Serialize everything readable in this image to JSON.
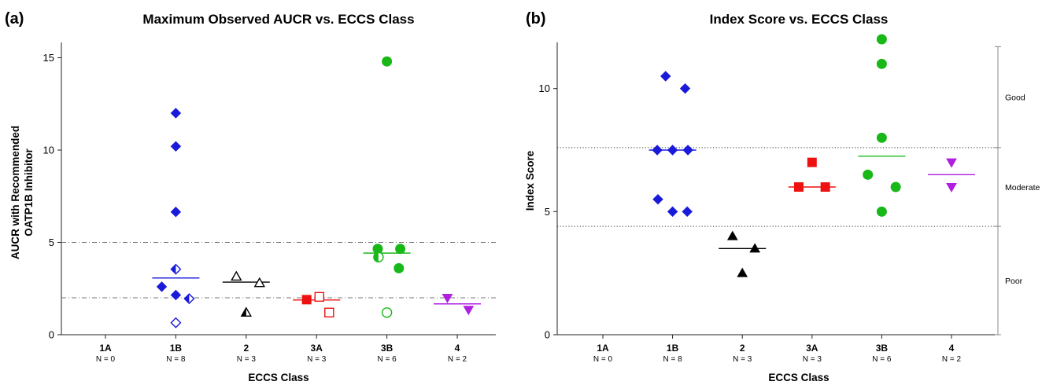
{
  "chart_data": [
    {
      "type": "scatter",
      "panel_label": "(a)",
      "title": "Maximum Observed AUCR vs.  ECCS Class",
      "xlabel": "ECCS Class",
      "ylabel_line1": "AUCR with Recommended",
      "ylabel_line2": "OATP1B Inhibitor",
      "ylim": [
        0,
        16
      ],
      "yticks": [
        0,
        5,
        10,
        15
      ],
      "ytick_labels": [
        "0",
        "5",
        "10",
        "15"
      ],
      "categories": [
        "1A",
        "1B",
        "2",
        "3A",
        "3B",
        "4"
      ],
      "n_labels": [
        "N = 0",
        "N = 8",
        "N = 3",
        "N = 3",
        "N = 6",
        "N = 2"
      ],
      "reference_lines": [
        5,
        2
      ],
      "series": [
        {
          "category": "1B",
          "color": "#1a1adb",
          "marker": "diamond",
          "points": [
            {
              "dx": 0,
              "y": 12.0,
              "fill": "full"
            },
            {
              "dx": 0,
              "y": 10.2,
              "fill": "full"
            },
            {
              "dx": 0,
              "y": 6.65,
              "fill": "full"
            },
            {
              "dx": 0,
              "y": 3.55,
              "fill": "half"
            },
            {
              "dx": -0.2,
              "y": 2.6,
              "fill": "full"
            },
            {
              "dx": 0,
              "y": 2.15,
              "fill": "full"
            },
            {
              "dx": 0.19,
              "y": 1.95,
              "fill": "half"
            },
            {
              "dx": 0,
              "y": 0.65,
              "fill": "open"
            }
          ],
          "median": 3.07
        },
        {
          "category": "2",
          "color": "#000000",
          "marker": "triangle-up",
          "points": [
            {
              "dx": -0.14,
              "y": 3.15,
              "fill": "open"
            },
            {
              "dx": 0.19,
              "y": 2.8,
              "fill": "open"
            },
            {
              "dx": 0,
              "y": 1.2,
              "fill": "half"
            }
          ],
          "median": 2.85
        },
        {
          "category": "3A",
          "color": "#ee1111",
          "marker": "square",
          "points": [
            {
              "dx": -0.14,
              "y": 1.9,
              "fill": "full"
            },
            {
              "dx": 0.04,
              "y": 2.05,
              "fill": "open"
            },
            {
              "dx": 0.18,
              "y": 1.2,
              "fill": "open"
            }
          ],
          "median": 1.88
        },
        {
          "category": "3B",
          "color": "#18b818",
          "marker": "circle",
          "points": [
            {
              "dx": 0,
              "y": 14.8,
              "fill": "full"
            },
            {
              "dx": -0.13,
              "y": 4.65,
              "fill": "full"
            },
            {
              "dx": 0.19,
              "y": 4.65,
              "fill": "full"
            },
            {
              "dx": -0.12,
              "y": 4.2,
              "fill": "half"
            },
            {
              "dx": 0.17,
              "y": 3.6,
              "fill": "full"
            },
            {
              "dx": 0,
              "y": 1.2,
              "fill": "open"
            }
          ],
          "median": 4.42
        },
        {
          "category": "4",
          "color": "#b01ee0",
          "marker": "triangle-down",
          "points": [
            {
              "dx": -0.14,
              "y": 2.0,
              "fill": "full"
            },
            {
              "dx": 0.16,
              "y": 1.35,
              "fill": "full"
            }
          ],
          "median": 1.67
        }
      ]
    },
    {
      "type": "scatter",
      "panel_label": "(b)",
      "title": "Index Score vs. ECCS Class",
      "xlabel": "ECCS Class",
      "ylabel": "Index  Score",
      "ylim": [
        0,
        12
      ],
      "yticks": [
        0,
        5,
        10
      ],
      "ytick_labels": [
        "0",
        "5",
        "10"
      ],
      "categories": [
        "1A",
        "1B",
        "2",
        "3A",
        "3B",
        "4"
      ],
      "n_labels": [
        "N = 0",
        "N = 8",
        "N = 3",
        "N = 3",
        "N = 6",
        "N = 2"
      ],
      "reference_lines": [
        7.6,
        4.4
      ],
      "bands": [
        {
          "label": "Good",
          "y_range": [
            7.6,
            11.7
          ]
        },
        {
          "label": "Moderate",
          "y_range": [
            4.4,
            7.6
          ]
        },
        {
          "label": "Poor",
          "y_range": [
            0,
            4.4
          ]
        }
      ],
      "series": [
        {
          "category": "1B",
          "color": "#1a1adb",
          "marker": "diamond",
          "points": [
            {
              "dx": -0.1,
              "y": 10.5,
              "fill": "full"
            },
            {
              "dx": 0.18,
              "y": 10.0,
              "fill": "full"
            },
            {
              "dx": -0.22,
              "y": 7.5,
              "fill": "full"
            },
            {
              "dx": 0,
              "y": 7.5,
              "fill": "full"
            },
            {
              "dx": 0.22,
              "y": 7.5,
              "fill": "full"
            },
            {
              "dx": -0.21,
              "y": 5.5,
              "fill": "full"
            },
            {
              "dx": 0,
              "y": 5.0,
              "fill": "full"
            },
            {
              "dx": 0.21,
              "y": 5.0,
              "fill": "full"
            }
          ],
          "median": 7.5
        },
        {
          "category": "2",
          "color": "#000000",
          "marker": "triangle-up",
          "points": [
            {
              "dx": -0.14,
              "y": 4.0,
              "fill": "full"
            },
            {
              "dx": 0.18,
              "y": 3.5,
              "fill": "full"
            },
            {
              "dx": 0,
              "y": 2.5,
              "fill": "full"
            }
          ],
          "median": 3.5
        },
        {
          "category": "3A",
          "color": "#ee1111",
          "marker": "square",
          "points": [
            {
              "dx": 0,
              "y": 7.0,
              "fill": "full"
            },
            {
              "dx": -0.19,
              "y": 6.0,
              "fill": "full"
            },
            {
              "dx": 0.19,
              "y": 6.0,
              "fill": "full"
            }
          ],
          "median": 6.0
        },
        {
          "category": "3B",
          "color": "#18b818",
          "marker": "circle",
          "points": [
            {
              "dx": 0,
              "y": 12.0,
              "fill": "full"
            },
            {
              "dx": 0,
              "y": 11.0,
              "fill": "full"
            },
            {
              "dx": 0,
              "y": 8.0,
              "fill": "full"
            },
            {
              "dx": -0.2,
              "y": 6.5,
              "fill": "full"
            },
            {
              "dx": 0.2,
              "y": 6.0,
              "fill": "full"
            },
            {
              "dx": 0,
              "y": 5.0,
              "fill": "full"
            }
          ],
          "median": 7.25
        },
        {
          "category": "4",
          "color": "#b01ee0",
          "marker": "triangle-down",
          "points": [
            {
              "dx": 0,
              "y": 7.0,
              "fill": "full"
            },
            {
              "dx": 0,
              "y": 6.0,
              "fill": "full"
            }
          ],
          "median": 6.5
        }
      ]
    }
  ]
}
